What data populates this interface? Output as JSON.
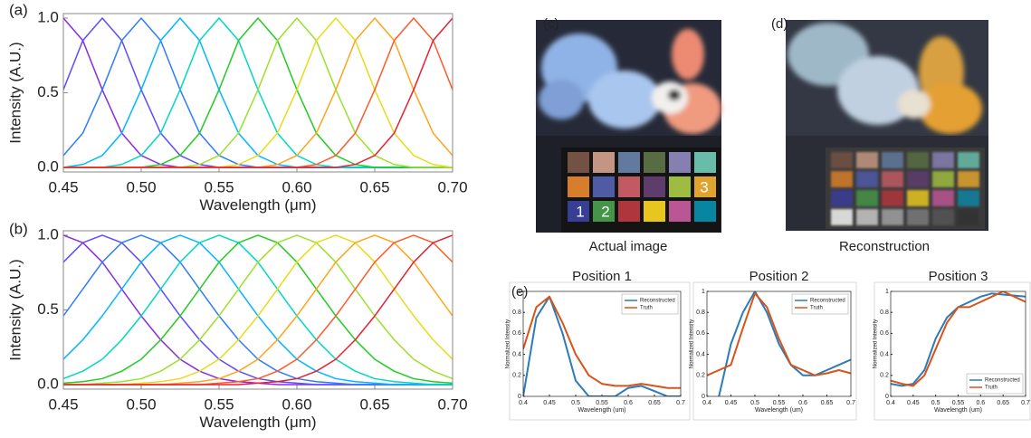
{
  "chart_data": [
    {
      "type": "line",
      "label": "(a)",
      "xlabel": "Wavelength (μm)",
      "ylabel": "Intensity (A.U.)",
      "x": [
        0.45,
        0.4625,
        0.475,
        0.4875,
        0.5,
        0.5125,
        0.525,
        0.5375,
        0.55,
        0.5625,
        0.575,
        0.5875,
        0.6,
        0.6125,
        0.625,
        0.6375,
        0.65,
        0.6625,
        0.675,
        0.6875,
        0.7
      ],
      "xlim": [
        0.45,
        0.7
      ],
      "ylim": [
        -0.03,
        1.03
      ],
      "xticks": [
        0.45,
        {
          "value": 0.5,
          "label": "0.50"
        },
        0.55,
        {
          "value": 0.6,
          "label": "0.60"
        },
        0.65,
        {
          "value": 0.7,
          "label": "0.70"
        }
      ],
      "yticks": [
        {
          "value": 0,
          "label": "0.0"
        },
        0.5,
        {
          "value": 1,
          "label": "1.0"
        }
      ],
      "series": [
        {
          "color": "#8a2be2",
          "values": [
            1,
            0.85,
            0.52,
            0.23,
            0.08,
            0.02,
            0,
            0,
            0,
            0,
            0,
            0,
            0,
            0,
            0,
            0,
            0,
            0,
            0,
            0,
            0
          ]
        },
        {
          "color": "#5b4cff",
          "values": [
            0.52,
            0.85,
            1,
            0.85,
            0.52,
            0.23,
            0.08,
            0.02,
            0,
            0,
            0,
            0,
            0,
            0,
            0,
            0,
            0,
            0,
            0,
            0,
            0
          ]
        },
        {
          "color": "#2f7bff",
          "values": [
            0.08,
            0.23,
            0.52,
            0.85,
            1,
            0.85,
            0.52,
            0.23,
            0.08,
            0.02,
            0,
            0,
            0,
            0,
            0,
            0,
            0,
            0,
            0,
            0,
            0
          ]
        },
        {
          "color": "#00b7ff",
          "values": [
            0,
            0.02,
            0.08,
            0.23,
            0.52,
            0.85,
            1,
            0.85,
            0.52,
            0.23,
            0.08,
            0.02,
            0,
            0,
            0,
            0,
            0,
            0,
            0,
            0,
            0
          ]
        },
        {
          "color": "#00d9c0",
          "values": [
            0,
            0,
            0,
            0.02,
            0.08,
            0.23,
            0.52,
            0.85,
            1,
            0.85,
            0.52,
            0.23,
            0.08,
            0.02,
            0,
            0,
            0,
            0,
            0,
            0,
            0
          ]
        },
        {
          "color": "#22cc22",
          "values": [
            0,
            0,
            0,
            0,
            0,
            0.02,
            0.08,
            0.23,
            0.52,
            0.85,
            1,
            0.85,
            0.52,
            0.23,
            0.08,
            0.02,
            0,
            0,
            0,
            0,
            0
          ]
        },
        {
          "color": "#9be22b",
          "values": [
            0,
            0,
            0,
            0,
            0,
            0,
            0,
            0.02,
            0.08,
            0.23,
            0.52,
            0.85,
            1,
            0.85,
            0.52,
            0.23,
            0.08,
            0.02,
            0,
            0,
            0
          ]
        },
        {
          "color": "#e8dc1a",
          "values": [
            0,
            0,
            0,
            0,
            0,
            0,
            0,
            0,
            0,
            0.02,
            0.08,
            0.23,
            0.52,
            0.85,
            1,
            0.85,
            0.52,
            0.23,
            0.08,
            0.02,
            0
          ]
        },
        {
          "color": "#ffa41c",
          "values": [
            0,
            0,
            0,
            0,
            0,
            0,
            0,
            0,
            0,
            0,
            0,
            0.02,
            0.08,
            0.23,
            0.52,
            0.85,
            1,
            0.85,
            0.52,
            0.23,
            0.08
          ]
        },
        {
          "color": "#ff5a2a",
          "values": [
            0,
            0,
            0,
            0,
            0,
            0,
            0,
            0,
            0,
            0,
            0,
            0,
            0,
            0.02,
            0.08,
            0.23,
            0.52,
            0.85,
            1,
            0.85,
            0.52
          ]
        },
        {
          "color": "#e82030",
          "values": [
            0,
            0,
            0,
            0,
            0,
            0,
            0,
            0,
            0,
            0,
            0,
            0,
            0,
            0,
            0,
            0.02,
            0.08,
            0.23,
            0.52,
            0.85,
            1
          ]
        }
      ]
    },
    {
      "type": "line",
      "label": "(b)",
      "xlabel": "Wavelength (μm)",
      "ylabel": "Intensity (A.U.)",
      "x": [
        0.45,
        0.4625,
        0.475,
        0.4875,
        0.5,
        0.5125,
        0.525,
        0.5375,
        0.55,
        0.5625,
        0.575,
        0.5875,
        0.6,
        0.6125,
        0.625,
        0.6375,
        0.65,
        0.6625,
        0.675,
        0.6875,
        0.7
      ],
      "xlim": [
        0.45,
        0.7
      ],
      "ylim": [
        -0.03,
        1.03
      ],
      "xticks": [
        0.45,
        {
          "value": 0.5,
          "label": "0.50"
        },
        0.55,
        {
          "value": 0.6,
          "label": "0.60"
        },
        0.65,
        {
          "value": 0.7,
          "label": "0.70"
        }
      ],
      "yticks": [
        {
          "value": 0,
          "label": "0.0"
        },
        0.5,
        {
          "value": 1,
          "label": "1.0"
        }
      ],
      "series": [
        {
          "color": "#8a2be2",
          "values": [
            1,
            0.95,
            0.82,
            0.64,
            0.46,
            0.3,
            0.17,
            0.09,
            0.04,
            0.02,
            0.01,
            0,
            0,
            0,
            0,
            0,
            0,
            0,
            0,
            0,
            0
          ]
        },
        {
          "color": "#5b4cff",
          "values": [
            0.82,
            0.95,
            1,
            0.95,
            0.82,
            0.64,
            0.46,
            0.3,
            0.17,
            0.09,
            0.04,
            0.02,
            0.01,
            0,
            0,
            0,
            0,
            0,
            0,
            0,
            0
          ]
        },
        {
          "color": "#2f7bff",
          "values": [
            0.46,
            0.64,
            0.82,
            0.95,
            1,
            0.95,
            0.82,
            0.64,
            0.46,
            0.3,
            0.17,
            0.09,
            0.04,
            0.02,
            0.01,
            0,
            0,
            0,
            0,
            0,
            0
          ]
        },
        {
          "color": "#00b7ff",
          "values": [
            0.17,
            0.3,
            0.46,
            0.64,
            0.82,
            0.95,
            1,
            0.95,
            0.82,
            0.64,
            0.46,
            0.3,
            0.17,
            0.09,
            0.04,
            0.02,
            0.01,
            0,
            0,
            0,
            0
          ]
        },
        {
          "color": "#00d9c0",
          "values": [
            0.04,
            0.09,
            0.17,
            0.3,
            0.46,
            0.64,
            0.82,
            0.95,
            1,
            0.95,
            0.82,
            0.64,
            0.46,
            0.3,
            0.17,
            0.09,
            0.04,
            0.02,
            0.01,
            0,
            0
          ]
        },
        {
          "color": "#22cc22",
          "values": [
            0.01,
            0.02,
            0.04,
            0.09,
            0.17,
            0.3,
            0.46,
            0.64,
            0.82,
            0.95,
            1,
            0.95,
            0.82,
            0.64,
            0.46,
            0.3,
            0.17,
            0.09,
            0.04,
            0.02,
            0.01
          ]
        },
        {
          "color": "#9be22b",
          "values": [
            0,
            0,
            0.01,
            0.02,
            0.04,
            0.09,
            0.17,
            0.3,
            0.46,
            0.64,
            0.82,
            0.95,
            1,
            0.95,
            0.82,
            0.64,
            0.46,
            0.3,
            0.17,
            0.09,
            0.04
          ]
        },
        {
          "color": "#e8dc1a",
          "values": [
            0,
            0,
            0,
            0,
            0.01,
            0.02,
            0.04,
            0.09,
            0.17,
            0.3,
            0.46,
            0.64,
            0.82,
            0.95,
            1,
            0.95,
            0.82,
            0.64,
            0.46,
            0.3,
            0.17
          ]
        },
        {
          "color": "#ffa41c",
          "values": [
            0,
            0,
            0,
            0,
            0,
            0,
            0.01,
            0.02,
            0.04,
            0.09,
            0.17,
            0.3,
            0.46,
            0.64,
            0.82,
            0.95,
            1,
            0.95,
            0.82,
            0.64,
            0.46
          ]
        },
        {
          "color": "#ff5a2a",
          "values": [
            0,
            0,
            0,
            0,
            0,
            0,
            0,
            0,
            0.01,
            0.02,
            0.04,
            0.09,
            0.17,
            0.3,
            0.46,
            0.64,
            0.82,
            0.95,
            1,
            0.95,
            0.82
          ]
        },
        {
          "color": "#e82030",
          "values": [
            0,
            0,
            0,
            0,
            0,
            0,
            0,
            0,
            0,
            0,
            0.01,
            0.02,
            0.04,
            0.09,
            0.17,
            0.3,
            0.46,
            0.64,
            0.82,
            0.95,
            1
          ]
        }
      ]
    },
    {
      "type": "line",
      "label": "(e)",
      "title": "Position 1",
      "xlabel": "Wavelength (um)",
      "ylabel": "Normalized Intensity",
      "x": [
        0.4,
        0.425,
        0.45,
        0.475,
        0.5,
        0.525,
        0.55,
        0.575,
        0.6,
        0.625,
        0.65,
        0.675,
        0.7
      ],
      "xlim": [
        0.4,
        0.7
      ],
      "ylim": [
        0,
        1
      ],
      "xticks": [
        0.4,
        0.45,
        0.5,
        0.55,
        0.6,
        0.65,
        0.7
      ],
      "yticks": [
        0,
        0.2,
        0.4,
        0.6,
        0.8,
        1
      ],
      "legend": "upper right",
      "series": [
        {
          "name": "Reconstructed",
          "color": "#2b7bba",
          "values": [
            0,
            0.75,
            0.95,
            0.6,
            0.15,
            0,
            0,
            0,
            0.08,
            0.1,
            0.05,
            0,
            0
          ]
        },
        {
          "name": "Truth",
          "color": "#d95319",
          "values": [
            0.45,
            0.85,
            0.95,
            0.7,
            0.4,
            0.2,
            0.12,
            0.1,
            0.1,
            0.12,
            0.1,
            0.08,
            0.08
          ]
        }
      ]
    },
    {
      "type": "line",
      "title": "Position 2",
      "xlabel": "Wavelength (um)",
      "ylabel": "Normalized Intensity",
      "x": [
        0.4,
        0.425,
        0.45,
        0.475,
        0.5,
        0.525,
        0.55,
        0.575,
        0.6,
        0.625,
        0.65,
        0.675,
        0.7
      ],
      "xlim": [
        0.4,
        0.7
      ],
      "ylim": [
        0,
        1
      ],
      "xticks": [
        0.4,
        0.45,
        0.5,
        0.55,
        0.6,
        0.65,
        0.7
      ],
      "yticks": [
        0,
        0.2,
        0.4,
        0.6,
        0.8,
        1
      ],
      "legend": "upper right",
      "series": [
        {
          "name": "Reconstructed",
          "color": "#2b7bba",
          "values": [
            null,
            0,
            0.5,
            0.8,
            1,
            0.8,
            0.5,
            0.3,
            0.2,
            0.2,
            0.25,
            0.3,
            0.35
          ]
        },
        {
          "name": "Truth",
          "color": "#d95319",
          "values": [
            0.2,
            0.25,
            0.3,
            0.65,
            0.98,
            0.85,
            0.55,
            0.3,
            0.25,
            0.2,
            0.22,
            0.25,
            0.22
          ]
        }
      ]
    },
    {
      "type": "line",
      "title": "Position 3",
      "xlabel": "Wavelength (um)",
      "ylabel": "Normalized Intensity",
      "x": [
        0.4,
        0.425,
        0.45,
        0.475,
        0.5,
        0.525,
        0.55,
        0.575,
        0.6,
        0.625,
        0.65,
        0.675,
        0.7
      ],
      "xlim": [
        0.4,
        0.7
      ],
      "ylim": [
        0,
        1
      ],
      "xticks": [
        0.4,
        0.45,
        0.5,
        0.55,
        0.6,
        0.65,
        0.7
      ],
      "yticks": [
        0,
        0.2,
        0.4,
        0.6,
        0.8,
        1
      ],
      "legend": "lower right",
      "series": [
        {
          "name": "Reconstructed",
          "color": "#2b7bba",
          "values": [
            0.12,
            0.1,
            0.12,
            0.25,
            0.55,
            0.75,
            0.85,
            0.9,
            0.95,
            0.98,
            0.97,
            0.96,
            0.95
          ]
        },
        {
          "name": "Truth",
          "color": "#d95319",
          "values": [
            0.15,
            0.12,
            0.1,
            0.2,
            0.45,
            0.7,
            0.85,
            0.85,
            0.9,
            0.95,
            1,
            0.95,
            0.9
          ]
        }
      ]
    }
  ],
  "images": [
    {
      "label": "(c)",
      "caption": "Actual image",
      "markers": [
        "1",
        "2",
        "3"
      ]
    },
    {
      "label": "(d)",
      "caption": "Reconstruction"
    }
  ]
}
